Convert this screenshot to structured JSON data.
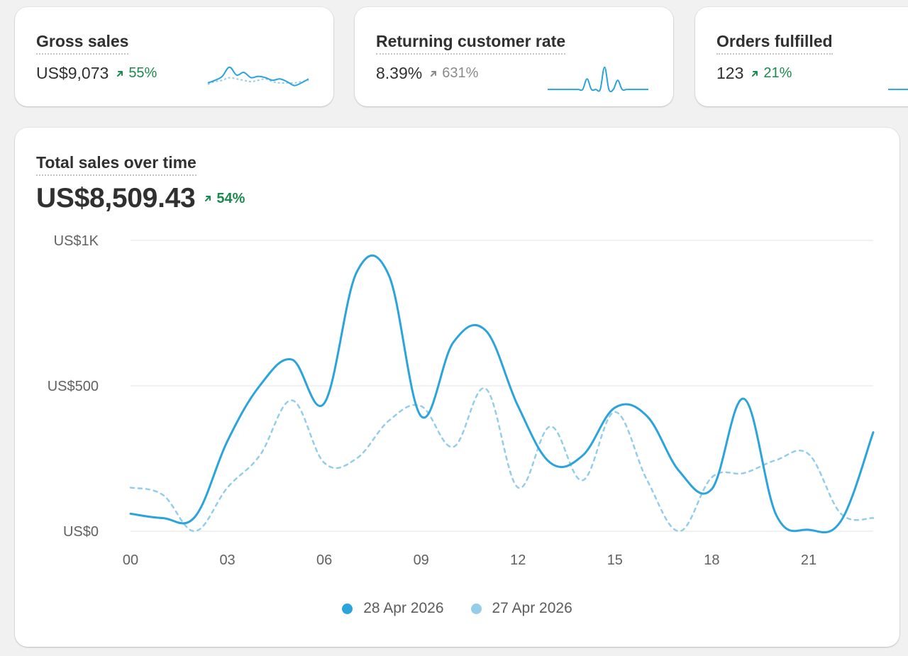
{
  "metrics": [
    {
      "title": "Gross sales",
      "value": "US$9,073",
      "change": "55%",
      "change_color": "#1c8a4c",
      "sparkline_current": [
        0.3,
        0.4,
        0.55,
        0.9,
        0.6,
        0.7,
        0.5,
        0.55,
        0.5,
        0.4,
        0.45,
        0.35,
        0.2,
        0.3,
        0.45
      ],
      "sparkline_previous": [
        0.25,
        0.35,
        0.4,
        0.5,
        0.45,
        0.4,
        0.35,
        0.4,
        0.45,
        0.35,
        0.3,
        0.3,
        0.3,
        0.35,
        0.4
      ]
    },
    {
      "title": "Returning customer rate",
      "value": "8.39%",
      "change": "631%",
      "change_color": "#8a8a8a",
      "sparkline_current": [
        0.05,
        0.05,
        0.05,
        0.05,
        0.05,
        0.05,
        0.05,
        0.05,
        0.05,
        0.45,
        0.05,
        0.05,
        0.05,
        0.9,
        0.05,
        0.05,
        0.4,
        0.05,
        0.05,
        0.05,
        0.05,
        0.05,
        0.05,
        0.05
      ],
      "sparkline_previous": []
    },
    {
      "title": "Orders fulfilled",
      "value": "123",
      "change": "21%",
      "change_color": "#1c8a4c",
      "sparkline_current": [
        0.05,
        0.05,
        0.05
      ],
      "sparkline_previous": []
    }
  ],
  "main": {
    "title": "Total sales over time",
    "value": "US$8,509.43",
    "change": "54%",
    "change_color": "#1c8a4c"
  },
  "chart_data": {
    "type": "line",
    "x": [
      0,
      1,
      2,
      3,
      4,
      5,
      6,
      7,
      8,
      9,
      10,
      11,
      12,
      13,
      14,
      15,
      16,
      17,
      18,
      19,
      20,
      21,
      22,
      23
    ],
    "x_tick_values": [
      0,
      3,
      6,
      9,
      12,
      15,
      18,
      21
    ],
    "x_tick_labels": [
      "00",
      "03",
      "06",
      "09",
      "12",
      "15",
      "18",
      "21"
    ],
    "y_tick_values": [
      0,
      500,
      1000
    ],
    "y_tick_labels": [
      "US$0",
      "US$500",
      "US$1K"
    ],
    "ylim": [
      0,
      1000
    ],
    "grid": true,
    "legend_position": "bottom-center",
    "series": [
      {
        "name": "28 Apr 2026",
        "color": "#2ba3dc",
        "style": "solid",
        "values": [
          60,
          45,
          50,
          310,
          500,
          590,
          440,
          890,
          880,
          395,
          650,
          690,
          430,
          235,
          260,
          425,
          395,
          205,
          145,
          455,
          55,
          5,
          35,
          340
        ]
      },
      {
        "name": "27 Apr 2026",
        "color": "#94cde9",
        "style": "dashed",
        "values": [
          150,
          125,
          0,
          150,
          260,
          450,
          235,
          250,
          380,
          430,
          290,
          490,
          150,
          360,
          175,
          410,
          175,
          0,
          185,
          200,
          245,
          265,
          60,
          45
        ]
      }
    ]
  }
}
